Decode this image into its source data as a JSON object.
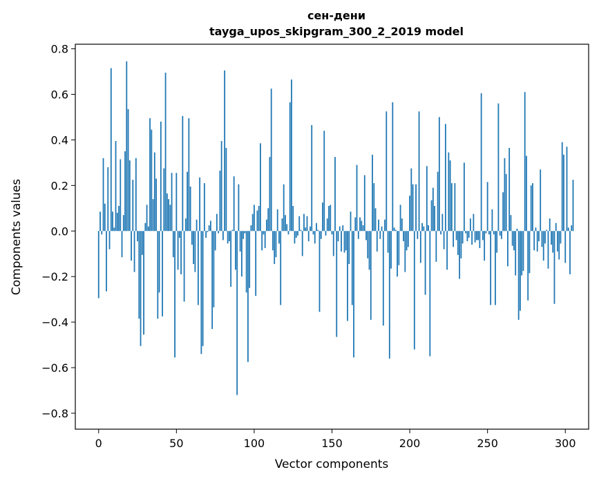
{
  "chart_data": {
    "type": "bar",
    "title": "сен-дени",
    "subtitle": "tayga_upos_skipgram_300_2_2019 model",
    "xlabel": "Vector components",
    "ylabel": "Components values",
    "xlim": [
      -15,
      315
    ],
    "ylim": [
      -0.87,
      0.82
    ],
    "xticks": [
      0,
      50,
      100,
      150,
      200,
      250,
      300
    ],
    "xtick_labels": [
      "0",
      "50",
      "100",
      "150",
      "200",
      "250",
      "300"
    ],
    "yticks": [
      -0.8,
      -0.6,
      -0.4,
      -0.2,
      0.0,
      0.2,
      0.4,
      0.6,
      0.8
    ],
    "ytick_labels": [
      "−0.8",
      "−0.6",
      "−0.4",
      "−0.2",
      "0.0",
      "0.2",
      "0.4",
      "0.6",
      "0.8"
    ],
    "grid": false,
    "bar_color": "#1f77b4",
    "values": [
      -0.295,
      0.085,
      -0.015,
      0.32,
      0.12,
      -0.265,
      0.28,
      -0.08,
      0.715,
      0.085,
      0.015,
      0.395,
      0.08,
      0.11,
      0.315,
      -0.115,
      0.07,
      0.35,
      0.745,
      0.535,
      0.31,
      -0.13,
      0.225,
      -0.18,
      0.32,
      -0.045,
      -0.385,
      -0.505,
      -0.105,
      -0.455,
      0.035,
      0.115,
      0.02,
      0.495,
      0.445,
      0.14,
      0.345,
      0.23,
      -0.385,
      -0.27,
      0.48,
      -0.375,
      0.275,
      0.695,
      0.165,
      0.14,
      0.115,
      0.255,
      -0.115,
      -0.555,
      0.255,
      -0.17,
      -0.03,
      -0.19,
      0.505,
      -0.31,
      0.055,
      0.26,
      0.495,
      0.195,
      -0.06,
      -0.145,
      -0.18,
      0.05,
      -0.325,
      0.235,
      -0.54,
      -0.505,
      0.21,
      -0.03,
      -0.005,
      0.025,
      0.045,
      -0.43,
      -0.335,
      -0.085,
      0.075,
      -0.01,
      0.265,
      0.395,
      -0.04,
      0.705,
      0.365,
      -0.055,
      -0.045,
      -0.245,
      0.005,
      0.24,
      -0.17,
      -0.72,
      0.205,
      -0.09,
      -0.2,
      -0.035,
      -0.01,
      -0.27,
      -0.575,
      -0.25,
      0.025,
      0.075,
      0.115,
      -0.285,
      0.09,
      0.11,
      0.385,
      -0.085,
      -0.015,
      -0.075,
      0.05,
      0.1,
      0.325,
      0.625,
      -0.085,
      -0.145,
      -0.115,
      0.095,
      -0.055,
      -0.325,
      0.055,
      0.205,
      0.07,
      0.03,
      -0.015,
      0.565,
      0.665,
      0.11,
      -0.055,
      -0.03,
      -0.02,
      0.065,
      0.005,
      -0.11,
      0.075,
      0.015,
      0.065,
      -0.045,
      0.02,
      0.465,
      -0.015,
      -0.055,
      0.035,
      0.005,
      -0.355,
      -0.035,
      0.125,
      0.44,
      -0.02,
      0.055,
      0.11,
      0.115,
      -0.015,
      -0.11,
      0.325,
      -0.465,
      -0.045,
      0.02,
      -0.09,
      0.025,
      -0.095,
      -0.085,
      -0.395,
      -0.145,
      0.085,
      -0.325,
      -0.555,
      0.06,
      0.29,
      -0.035,
      0.06,
      0.045,
      0.025,
      0.245,
      -0.04,
      -0.12,
      -0.17,
      -0.39,
      0.335,
      0.21,
      0.1,
      -0.09,
      0.05,
      -0.035,
      0.02,
      -0.415,
      0.05,
      0.525,
      -0.095,
      -0.56,
      -0.165,
      0.565,
      0.015,
      0.005,
      -0.2,
      -0.15,
      0.115,
      0.055,
      -0.045,
      -0.18,
      -0.085,
      -0.07,
      0.155,
      0.275,
      0.205,
      -0.52,
      0.205,
      -0.035,
      0.525,
      -0.14,
      0.035,
      0.02,
      -0.28,
      0.285,
      0.025,
      -0.55,
      0.135,
      0.19,
      0.11,
      -0.135,
      0.26,
      0.5,
      -0.015,
      0.075,
      -0.08,
      0.47,
      -0.17,
      0.345,
      0.31,
      0.21,
      -0.07,
      0.21,
      -0.04,
      -0.105,
      -0.21,
      -0.12,
      -0.055,
      0.3,
      -0.01,
      -0.045,
      -0.03,
      0.055,
      -0.06,
      0.075,
      -0.05,
      -0.04,
      -0.04,
      -0.075,
      0.605,
      -0.04,
      -0.13,
      -0.01,
      0.215,
      -0.015,
      -0.325,
      0.095,
      -0.015,
      -0.325,
      -0.095,
      0.56,
      -0.02,
      -0.035,
      0.17,
      0.32,
      0.25,
      -0.155,
      0.365,
      0.07,
      -0.065,
      -0.085,
      -0.195,
      0.01,
      -0.39,
      -0.35,
      -0.195,
      -0.175,
      0.61,
      0.33,
      -0.305,
      -0.185,
      0.2,
      0.21,
      -0.085,
      0.015,
      -0.09,
      -0.045,
      0.27,
      -0.07,
      -0.13,
      -0.055,
      0.005,
      -0.165,
      0.055,
      -0.06,
      -0.095,
      -0.32,
      0.035,
      -0.09,
      -0.125,
      -0.055,
      0.39,
      0.335,
      -0.14,
      0.37,
      0.015,
      -0.19,
      0.025,
      0.225
    ]
  }
}
